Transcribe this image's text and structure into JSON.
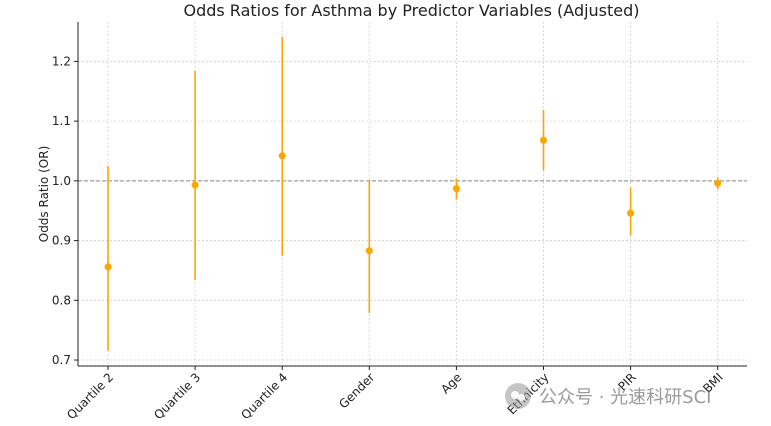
{
  "chart_data": {
    "type": "scatter",
    "title": "Odds Ratios for Asthma by Predictor Variables (Adjusted)",
    "xlabel": "",
    "ylabel": "Odds Ratio (OR)",
    "categories": [
      "Quartile 2",
      "Quartile 3",
      "Quartile 4",
      "Gender",
      "Age",
      "Ethnicity",
      "PIR",
      "BMI"
    ],
    "values": [
      0.856,
      0.993,
      1.042,
      0.883,
      0.987,
      1.068,
      0.946,
      0.996
    ],
    "ci_lower": [
      0.716,
      0.834,
      0.875,
      0.779,
      0.969,
      1.018,
      0.908,
      0.986
    ],
    "ci_upper": [
      1.025,
      1.184,
      1.241,
      1.0,
      1.004,
      1.119,
      0.989,
      1.006
    ],
    "reference_line": 1.0,
    "ylim": [
      0.69,
      1.266
    ],
    "yticks": [
      0.7,
      0.8,
      0.9,
      1.0,
      1.1,
      1.2
    ],
    "grid": true,
    "color": "#FFA500"
  },
  "watermark": {
    "text": "公众号 · 光速科研SCI",
    "icon": "wechat-icon"
  }
}
